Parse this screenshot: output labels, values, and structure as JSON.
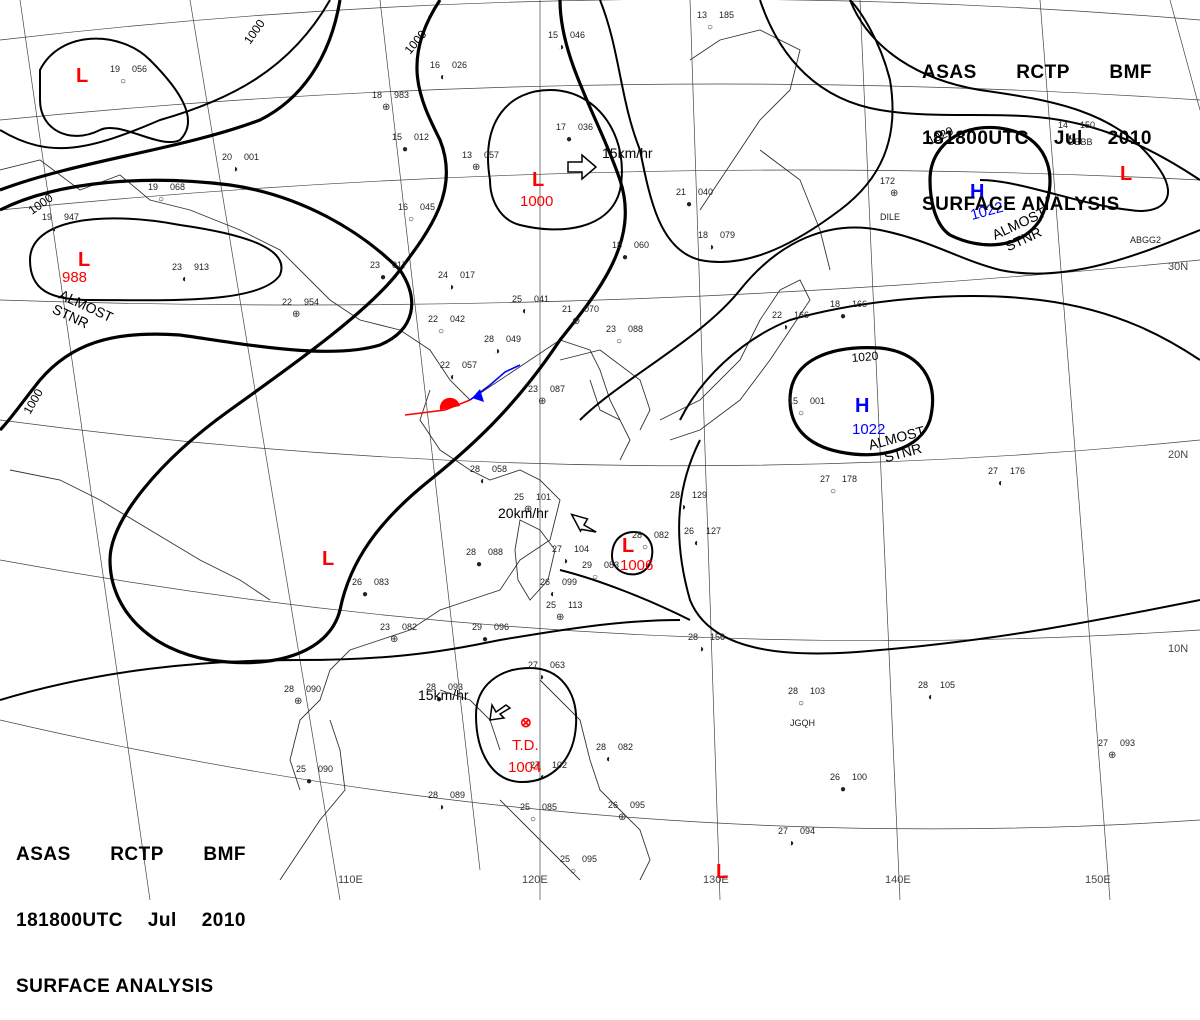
{
  "header": {
    "line1": [
      "ASAS",
      "RCTP",
      "BMF"
    ],
    "line2": [
      "181800UTC",
      "Jul",
      "2010"
    ],
    "line3": "SURFACE ANALYSIS"
  },
  "isobar_labels": [
    "1000",
    "1000",
    "1000",
    "1000",
    "1020",
    "1020"
  ],
  "longitude_labels": [
    "110E",
    "120E",
    "130E",
    "140E",
    "150E"
  ],
  "latitude_labels": [
    "30N",
    "20N",
    "10N"
  ],
  "systems": [
    {
      "id": "low-nw",
      "type": "L",
      "value": "",
      "status": "",
      "color": "#ff0000"
    },
    {
      "id": "low-west",
      "type": "L",
      "value": "988",
      "status": "ALMOST STNR",
      "color": "#ff0000"
    },
    {
      "id": "low-central",
      "type": "L",
      "value": "1000",
      "status": "",
      "motion": "15km/hr",
      "color": "#ff0000"
    },
    {
      "id": "low-ne",
      "type": "L",
      "value": "",
      "status": "",
      "color": "#ff0000"
    },
    {
      "id": "high-ne",
      "type": "H",
      "value": "1022",
      "status": "ALMOST STNR",
      "color": "#0000ff"
    },
    {
      "id": "high-pacific",
      "type": "H",
      "value": "1022",
      "status": "ALMOST STNR",
      "color": "#0000ff"
    },
    {
      "id": "low-taiwan",
      "type": "L",
      "value": "1006",
      "status": "",
      "motion": "20km/hr",
      "color": "#ff0000"
    },
    {
      "id": "low-sw",
      "type": "L",
      "value": "",
      "status": "",
      "color": "#ff0000"
    },
    {
      "id": "low-south",
      "type": "L",
      "value": "",
      "status": "",
      "color": "#ff0000"
    },
    {
      "id": "td",
      "type": "T.D.",
      "value": "1004",
      "status": "",
      "motion": "15km/hr",
      "color": "#ff0000"
    }
  ],
  "front": {
    "type": "stationary",
    "warm_color": "#ff0000",
    "cold_color": "#0000ff"
  },
  "stations": [
    {
      "t": "19",
      "p": "056"
    },
    {
      "t": "16",
      "p": "026"
    },
    {
      "t": "18",
      "p": "983"
    },
    {
      "t": "15",
      "p": "012"
    },
    {
      "t": "20",
      "p": "001"
    },
    {
      "t": "19",
      "p": "068"
    },
    {
      "t": "19",
      "p": "947"
    },
    {
      "t": "13",
      "p": "057"
    },
    {
      "t": "17",
      "p": "036"
    },
    {
      "t": "15",
      "p": "046"
    },
    {
      "t": "16",
      "p": "045"
    },
    {
      "t": "23",
      "p": "913"
    },
    {
      "t": "22",
      "p": "954"
    },
    {
      "t": "23",
      "p": "017"
    },
    {
      "t": "24",
      "p": "017"
    },
    {
      "t": "22",
      "p": "042"
    },
    {
      "t": "25",
      "p": "041"
    },
    {
      "t": "21",
      "p": "070"
    },
    {
      "t": "18",
      "p": "060"
    },
    {
      "t": "28",
      "p": "049"
    },
    {
      "t": "23",
      "p": "088"
    },
    {
      "t": "22",
      "p": "057"
    },
    {
      "t": "23",
      "p": "087"
    },
    {
      "t": "21",
      "p": "040"
    },
    {
      "t": "18",
      "p": "079"
    },
    {
      "t": "13",
      "p": "185"
    },
    {
      "t": "14",
      "p": "150"
    },
    {
      "t": "172",
      "p": ""
    },
    {
      "t": "18",
      "p": "166"
    },
    {
      "t": "22",
      "p": "166"
    },
    {
      "t": "15",
      "p": "001"
    },
    {
      "t": "28",
      "p": "058"
    },
    {
      "t": "25",
      "p": "101"
    },
    {
      "t": "28",
      "p": "088"
    },
    {
      "t": "27",
      "p": "104"
    },
    {
      "t": "29",
      "p": "083"
    },
    {
      "t": "26",
      "p": "099"
    },
    {
      "t": "25",
      "p": "113"
    },
    {
      "t": "26",
      "p": "083"
    },
    {
      "t": "28",
      "p": "129"
    },
    {
      "t": "28",
      "p": "082"
    },
    {
      "t": "26",
      "p": "127"
    },
    {
      "t": "23",
      "p": "082"
    },
    {
      "t": "29",
      "p": "096"
    },
    {
      "t": "28",
      "p": "156"
    },
    {
      "t": "27",
      "p": "178"
    },
    {
      "t": "27",
      "p": "176"
    },
    {
      "t": "28",
      "p": "090"
    },
    {
      "t": "28",
      "p": "093"
    },
    {
      "t": "27",
      "p": "063"
    },
    {
      "t": "28",
      "p": "103"
    },
    {
      "t": "28",
      "p": "105"
    },
    {
      "t": "27",
      "p": "093"
    },
    {
      "t": "25",
      "p": "090"
    },
    {
      "t": "28",
      "p": "089"
    },
    {
      "t": "25",
      "p": "085"
    },
    {
      "t": "27",
      "p": "102"
    },
    {
      "t": "26",
      "p": "095"
    },
    {
      "t": "26",
      "p": "100"
    },
    {
      "t": "27",
      "p": "094"
    },
    {
      "t": "25",
      "p": "095"
    },
    {
      "t": "28",
      "p": "082"
    }
  ],
  "station_ids": [
    "JGQH",
    "DILE",
    "DEBB",
    "ABGG2"
  ]
}
